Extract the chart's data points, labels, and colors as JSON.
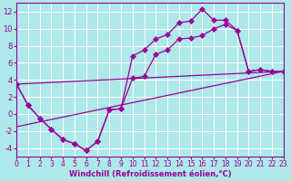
{
  "bg_color": "#aee8e8",
  "grid_color": "#ffffff",
  "line_color": "#990099",
  "markersize": 3,
  "linewidth": 0.9,
  "marker": "D",
  "xlabel": "Windchill (Refroidissement éolien,°C)",
  "xlabel_fontsize": 6,
  "tick_fontsize": 5.5,
  "xlim": [
    0,
    23
  ],
  "ylim": [
    -5,
    13
  ],
  "yticks": [
    -4,
    -2,
    0,
    2,
    4,
    6,
    8,
    10,
    12
  ],
  "xticks": [
    0,
    1,
    2,
    3,
    4,
    5,
    6,
    7,
    8,
    9,
    10,
    11,
    12,
    13,
    14,
    15,
    16,
    17,
    18,
    19,
    20,
    21,
    22,
    23
  ],
  "line1_x": [
    0,
    1,
    2,
    3,
    4,
    5,
    6,
    7,
    8,
    9,
    10,
    11,
    12,
    13,
    14,
    15,
    16,
    17,
    18,
    19,
    20,
    21,
    22,
    23
  ],
  "line1_y": [
    3.5,
    1.0,
    -0.5,
    -1.8,
    -3.0,
    -3.5,
    -4.3,
    -3.2,
    0.5,
    0.6,
    6.8,
    7.5,
    8.8,
    9.3,
    10.7,
    10.9,
    12.3,
    11.0,
    11.0,
    9.8,
    5.0,
    5.2,
    5.0,
    5.0
  ],
  "line2_x": [
    0,
    1,
    2,
    3,
    4,
    5,
    6,
    7,
    8,
    9,
    10,
    11,
    12,
    13,
    14,
    15,
    16,
    17,
    18,
    19,
    20,
    21,
    22,
    23
  ],
  "line2_y": [
    3.5,
    1.0,
    -0.5,
    -1.8,
    -3.0,
    -3.5,
    -4.3,
    -3.2,
    0.5,
    0.6,
    4.2,
    4.4,
    7.0,
    7.5,
    8.8,
    8.9,
    9.2,
    10.0,
    10.5,
    9.8,
    5.0,
    5.2,
    5.0,
    5.0
  ],
  "line3_x": [
    0,
    23
  ],
  "line3_y": [
    -1.5,
    5.0
  ],
  "line4_x": [
    0,
    23
  ],
  "line4_y": [
    3.5,
    5.0
  ]
}
